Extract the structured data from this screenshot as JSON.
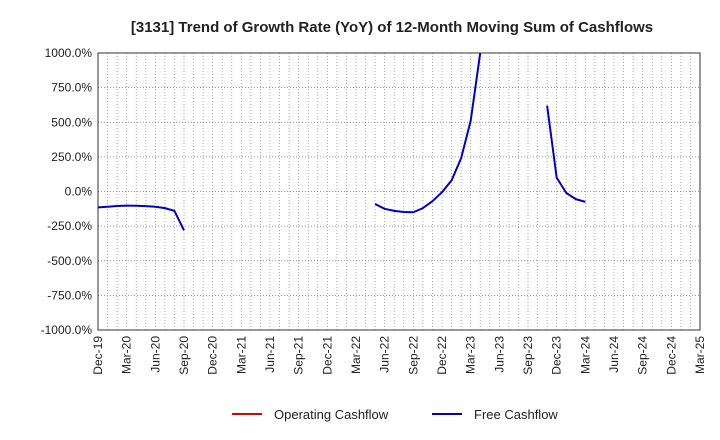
{
  "chart_data": {
    "type": "line",
    "title": "[3131]  Trend of Growth Rate (YoY) of 12-Month Moving Sum of Cashflows",
    "xlabel": "",
    "ylabel": "",
    "ylim": [
      -1000,
      1000
    ],
    "yticks": [
      -1000,
      -750,
      -500,
      -250,
      0,
      250,
      500,
      750,
      1000
    ],
    "ytick_labels": [
      "-1000.0%",
      "-750.0%",
      "-500.0%",
      "-250.0%",
      "0.0%",
      "250.0%",
      "500.0%",
      "750.0%",
      "1000.0%"
    ],
    "xlim": [
      "2019-12",
      "2025-03"
    ],
    "xticks": [
      "2019-12",
      "2020-03",
      "2020-06",
      "2020-09",
      "2020-12",
      "2021-03",
      "2021-06",
      "2021-09",
      "2021-12",
      "2022-03",
      "2022-06",
      "2022-09",
      "2022-12",
      "2023-03",
      "2023-06",
      "2023-09",
      "2023-12",
      "2024-03",
      "2024-06",
      "2024-09",
      "2024-12",
      "2025-03"
    ],
    "xtick_labels": [
      "Dec-19",
      "Mar-20",
      "Jun-20",
      "Sep-20",
      "Dec-20",
      "Mar-21",
      "Jun-21",
      "Sep-21",
      "Dec-21",
      "Mar-22",
      "Jun-22",
      "Sep-22",
      "Dec-22",
      "Mar-23",
      "Jun-23",
      "Sep-23",
      "Dec-23",
      "Mar-24",
      "Jun-24",
      "Sep-24",
      "Dec-24",
      "Mar-25"
    ],
    "grid": true,
    "legend_position": "bottom",
    "series": [
      {
        "name": "Operating Cashflow",
        "color": "#dd0000",
        "points": []
      },
      {
        "name": "Free Cashflow",
        "color": "#0000cc",
        "points": [
          [
            "2019-12",
            -115
          ],
          [
            "2020-01",
            -110
          ],
          [
            "2020-02",
            -105
          ],
          [
            "2020-03",
            -102
          ],
          [
            "2020-04",
            -103
          ],
          [
            "2020-05",
            -106
          ],
          [
            "2020-06",
            -110
          ],
          [
            "2020-07",
            -120
          ],
          [
            "2020-08",
            -140
          ],
          [
            "2020-09",
            -280
          ],
          null,
          [
            "2022-05",
            -90
          ],
          [
            "2022-06",
            -125
          ],
          [
            "2022-07",
            -140
          ],
          [
            "2022-08",
            -148
          ],
          [
            "2022-09",
            -150
          ],
          [
            "2022-10",
            -120
          ],
          [
            "2022-11",
            -70
          ],
          [
            "2022-12",
            -5
          ],
          [
            "2023-01",
            80
          ],
          [
            "2023-02",
            240
          ],
          [
            "2023-03",
            510
          ],
          [
            "2023-04",
            1000
          ],
          null,
          [
            "2023-11",
            620
          ],
          [
            "2023-12",
            100
          ],
          [
            "2024-01",
            -10
          ],
          [
            "2024-02",
            -55
          ],
          [
            "2024-03",
            -75
          ]
        ]
      }
    ]
  }
}
